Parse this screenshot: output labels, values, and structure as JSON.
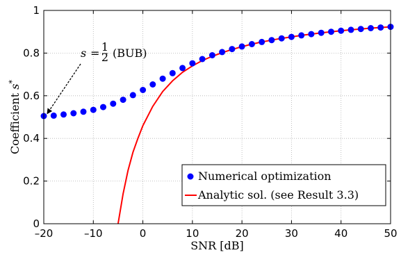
{
  "chart_data": {
    "type": "line",
    "xlabel": "SNR [dB]",
    "ylabel": "Coefficient s*",
    "xlim": [
      -20,
      50
    ],
    "ylim": [
      0,
      1
    ],
    "xticks": [
      -20,
      -10,
      0,
      10,
      20,
      30,
      40,
      50
    ],
    "xtick_labels": [
      "–20",
      "–10",
      "0",
      "10",
      "20",
      "30",
      "40",
      "50"
    ],
    "yticks": [
      0,
      0.2,
      0.4,
      0.6,
      0.8,
      1
    ],
    "ytick_labels": [
      "0",
      "0.2",
      "0.4",
      "0.6",
      "0.8",
      "1"
    ],
    "grid": true,
    "legend_position": "bottom-right",
    "annotation": {
      "s_symbol": "s",
      "equals": "=",
      "frac_num": "1",
      "frac_den": "2",
      "suffix": "(BUB)",
      "point": [
        -20,
        0.5
      ]
    },
    "series": [
      {
        "name": "Numerical optimization",
        "style": "markers",
        "color": "#0000ff",
        "x": [
          -20,
          -18,
          -16,
          -14,
          -12,
          -10,
          -8,
          -6,
          -4,
          -2,
          0,
          2,
          4,
          6,
          8,
          10,
          12,
          14,
          16,
          18,
          20,
          22,
          24,
          26,
          28,
          30,
          32,
          34,
          36,
          38,
          40,
          42,
          44,
          46,
          48,
          50
        ],
        "y": [
          0.505,
          0.507,
          0.512,
          0.518,
          0.525,
          0.534,
          0.547,
          0.563,
          0.581,
          0.603,
          0.627,
          0.653,
          0.68,
          0.706,
          0.73,
          0.752,
          0.772,
          0.79,
          0.805,
          0.819,
          0.831,
          0.842,
          0.852,
          0.861,
          0.869,
          0.876,
          0.883,
          0.889,
          0.895,
          0.9,
          0.905,
          0.909,
          0.913,
          0.917,
          0.92,
          0.923
        ]
      },
      {
        "name": "Analytic sol. (see Result 3.3)",
        "style": "line",
        "color": "#ff0000",
        "x": [
          -5,
          -4,
          -3,
          -2,
          -1,
          0,
          2,
          4,
          6,
          8,
          10,
          12,
          14,
          16,
          18,
          20,
          22,
          24,
          26,
          28,
          30,
          32,
          34,
          36,
          38,
          40,
          42,
          44,
          46,
          48,
          50
        ],
        "y": [
          0,
          0.14,
          0.25,
          0.335,
          0.4,
          0.46,
          0.55,
          0.62,
          0.67,
          0.71,
          0.74,
          0.765,
          0.785,
          0.802,
          0.817,
          0.83,
          0.842,
          0.852,
          0.861,
          0.869,
          0.876,
          0.883,
          0.889,
          0.895,
          0.9,
          0.905,
          0.909,
          0.913,
          0.917,
          0.92,
          0.923
        ]
      }
    ]
  }
}
